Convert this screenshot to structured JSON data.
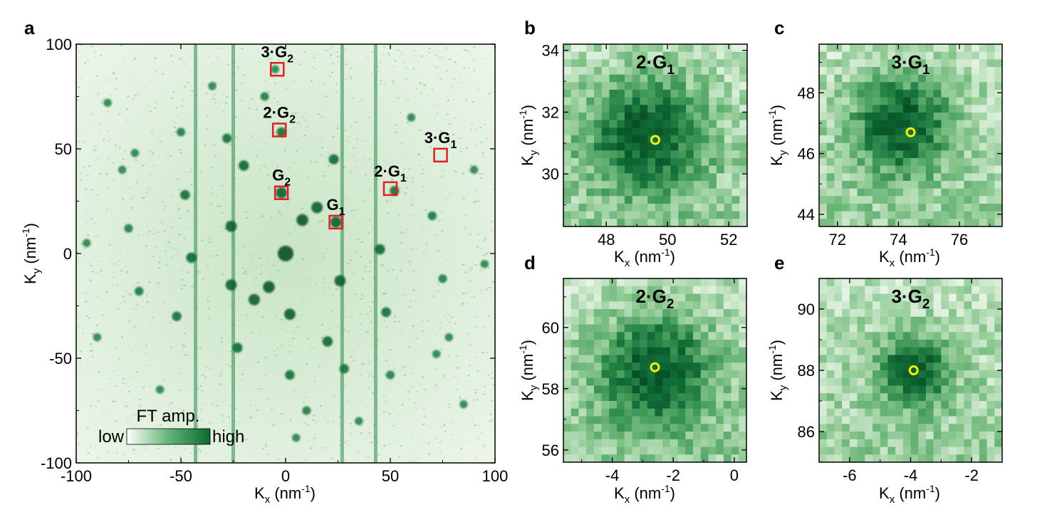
{
  "colors": {
    "map_low": "#ffffff",
    "map_high": "#0b6a32",
    "marker_box": "#e02020",
    "marker_circle": "#ffee00"
  },
  "chart_data": [
    {
      "id": "a",
      "type": "heatmap",
      "panel_label": "a",
      "xlabel": "Kx (nm-1)",
      "ylabel": "Ky (nm-1)",
      "xlim": [
        -100,
        100
      ],
      "ylim": [
        -100,
        100
      ],
      "xticks": [
        -100,
        -50,
        0,
        50,
        100
      ],
      "yticks": [
        -100,
        -50,
        0,
        50,
        100
      ],
      "vertical_streaks": [
        -43,
        -25,
        27,
        43
      ],
      "peaks": [
        [
          0,
          0
        ],
        [
          24,
          15
        ],
        [
          -26,
          -15
        ],
        [
          -2,
          29
        ],
        [
          2,
          -29
        ],
        [
          -26,
          13
        ],
        [
          26,
          -13
        ],
        [
          -45,
          -2
        ],
        [
          45,
          2
        ],
        [
          -23,
          -45
        ],
        [
          23,
          45
        ],
        [
          -20,
          42
        ],
        [
          20,
          -42
        ],
        [
          -48,
          28
        ],
        [
          48,
          -28
        ],
        [
          -52,
          -30
        ],
        [
          52,
          30
        ],
        [
          -75,
          12
        ],
        [
          75,
          -12
        ],
        [
          -70,
          -18
        ],
        [
          70,
          18
        ],
        [
          -78,
          40
        ],
        [
          78,
          -40
        ],
        [
          -28,
          55
        ],
        [
          28,
          -55
        ],
        [
          -50,
          58
        ],
        [
          50,
          -58
        ],
        [
          -2,
          58
        ],
        [
          2,
          -58
        ],
        [
          -72,
          48
        ],
        [
          72,
          -48
        ],
        [
          -95,
          5
        ],
        [
          95,
          -5
        ],
        [
          -10,
          75
        ],
        [
          10,
          -75
        ],
        [
          -35,
          80
        ],
        [
          35,
          -80
        ],
        [
          60,
          65
        ],
        [
          -60,
          -65
        ],
        [
          -90,
          -40
        ],
        [
          90,
          40
        ],
        [
          -85,
          72
        ],
        [
          85,
          -72
        ],
        [
          -5,
          88
        ],
        [
          5,
          -88
        ],
        [
          15,
          22
        ],
        [
          -15,
          -22
        ],
        [
          -8,
          -16
        ],
        [
          8,
          16
        ]
      ],
      "markers": [
        {
          "label": "G",
          "sub": "1",
          "x": 24,
          "y": 15
        },
        {
          "label": "G",
          "sub": "2",
          "x": -2,
          "y": 29
        },
        {
          "label": "2·G",
          "sub": "1",
          "x": 50,
          "y": 31
        },
        {
          "label": "2·G",
          "sub": "2",
          "x": -3,
          "y": 59
        },
        {
          "label": "3·G",
          "sub": "1",
          "x": 74,
          "y": 47
        },
        {
          "label": "3·G",
          "sub": "2",
          "x": -4,
          "y": 88
        }
      ],
      "colorbar": {
        "title": "FT amp.",
        "low_label": "low",
        "high_label": "high"
      }
    },
    {
      "id": "b",
      "type": "heatmap",
      "panel_label": "b",
      "title": "2·G",
      "title_sub": "1",
      "xlabel": "Kx (nm-1)",
      "ylabel": "Ky (nm-1)",
      "xlim": [
        46.6,
        52.6
      ],
      "ylim": [
        28.3,
        34.2
      ],
      "xticks": [
        48,
        50,
        52
      ],
      "yticks": [
        30,
        32,
        34
      ],
      "center": [
        49.6,
        31.1
      ],
      "peak": [
        49.3,
        31.3
      ],
      "spread": 1.3
    },
    {
      "id": "c",
      "type": "heatmap",
      "panel_label": "c",
      "title": "3·G",
      "title_sub": "1",
      "xlabel": "Kx (nm-1)",
      "ylabel": "Ky (nm-1)",
      "xlim": [
        71.4,
        77.4
      ],
      "ylim": [
        43.6,
        49.6
      ],
      "xticks": [
        72,
        74,
        76
      ],
      "yticks": [
        44,
        46,
        48
      ],
      "center": [
        74.4,
        46.7
      ],
      "peak": [
        74.1,
        47.0
      ],
      "spread": 1.1
    },
    {
      "id": "d",
      "type": "heatmap",
      "panel_label": "d",
      "title": "2·G",
      "title_sub": "2",
      "xlabel": "Kx (nm-1)",
      "ylabel": "Ky (nm-1)",
      "xlim": [
        -5.6,
        0.4
      ],
      "ylim": [
        55.6,
        61.6
      ],
      "xticks": [
        -4,
        -2,
        0
      ],
      "yticks": [
        56,
        58,
        60
      ],
      "center": [
        -2.6,
        58.7
      ],
      "peak": [
        -2.6,
        58.6
      ],
      "spread": 1.3
    },
    {
      "id": "e",
      "type": "heatmap",
      "panel_label": "e",
      "title": "3·G",
      "title_sub": "2",
      "xlabel": "Kx (nm-1)",
      "ylabel": "Ky (nm-1)",
      "xlim": [
        -7.0,
        -1.0
      ],
      "ylim": [
        85.0,
        91.0
      ],
      "xticks": [
        -6,
        -4,
        -2
      ],
      "yticks": [
        86,
        88,
        90
      ],
      "center": [
        -3.9,
        88.0
      ],
      "peak": [
        -3.9,
        88.0
      ],
      "spread": 0.8
    }
  ]
}
